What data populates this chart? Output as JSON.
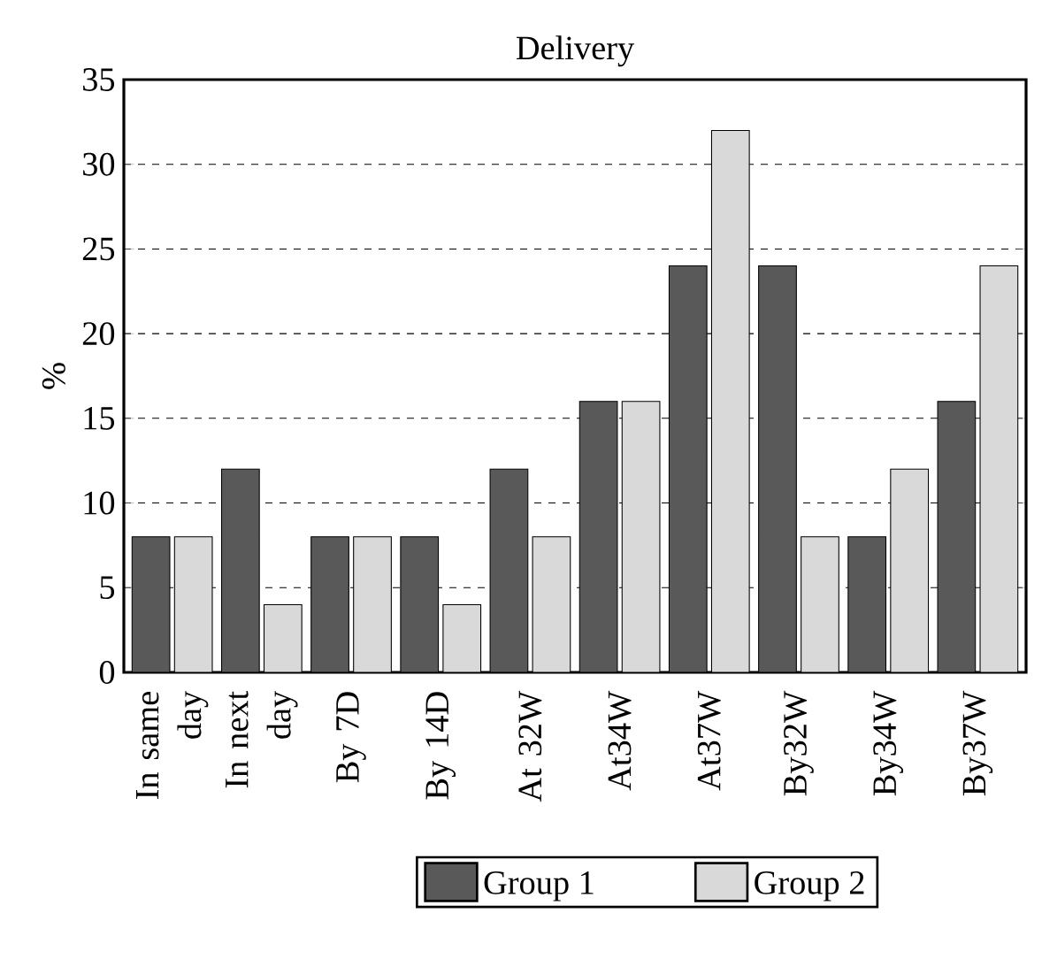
{
  "chart_data": {
    "type": "bar",
    "title": "Delivery",
    "ylabel": "%",
    "categories": [
      "In same day",
      "In next day",
      "By 7D",
      "By 14D",
      "At 32W",
      "At34W",
      "At37W",
      "By32W",
      "By34W",
      "By37W"
    ],
    "series": [
      {
        "name": "Group 1",
        "color": "#595959",
        "values": [
          8,
          12,
          8,
          8,
          12,
          16,
          24,
          24,
          8,
          16
        ]
      },
      {
        "name": "Group 2",
        "color": "#d9d9d9",
        "values": [
          8,
          4,
          8,
          4,
          8,
          16,
          32,
          8,
          12,
          24
        ]
      }
    ],
    "ylim": [
      0,
      35
    ],
    "yticks": [
      0,
      5,
      10,
      15,
      20,
      25,
      30,
      35
    ],
    "grid": "y",
    "legend": "bottom"
  }
}
